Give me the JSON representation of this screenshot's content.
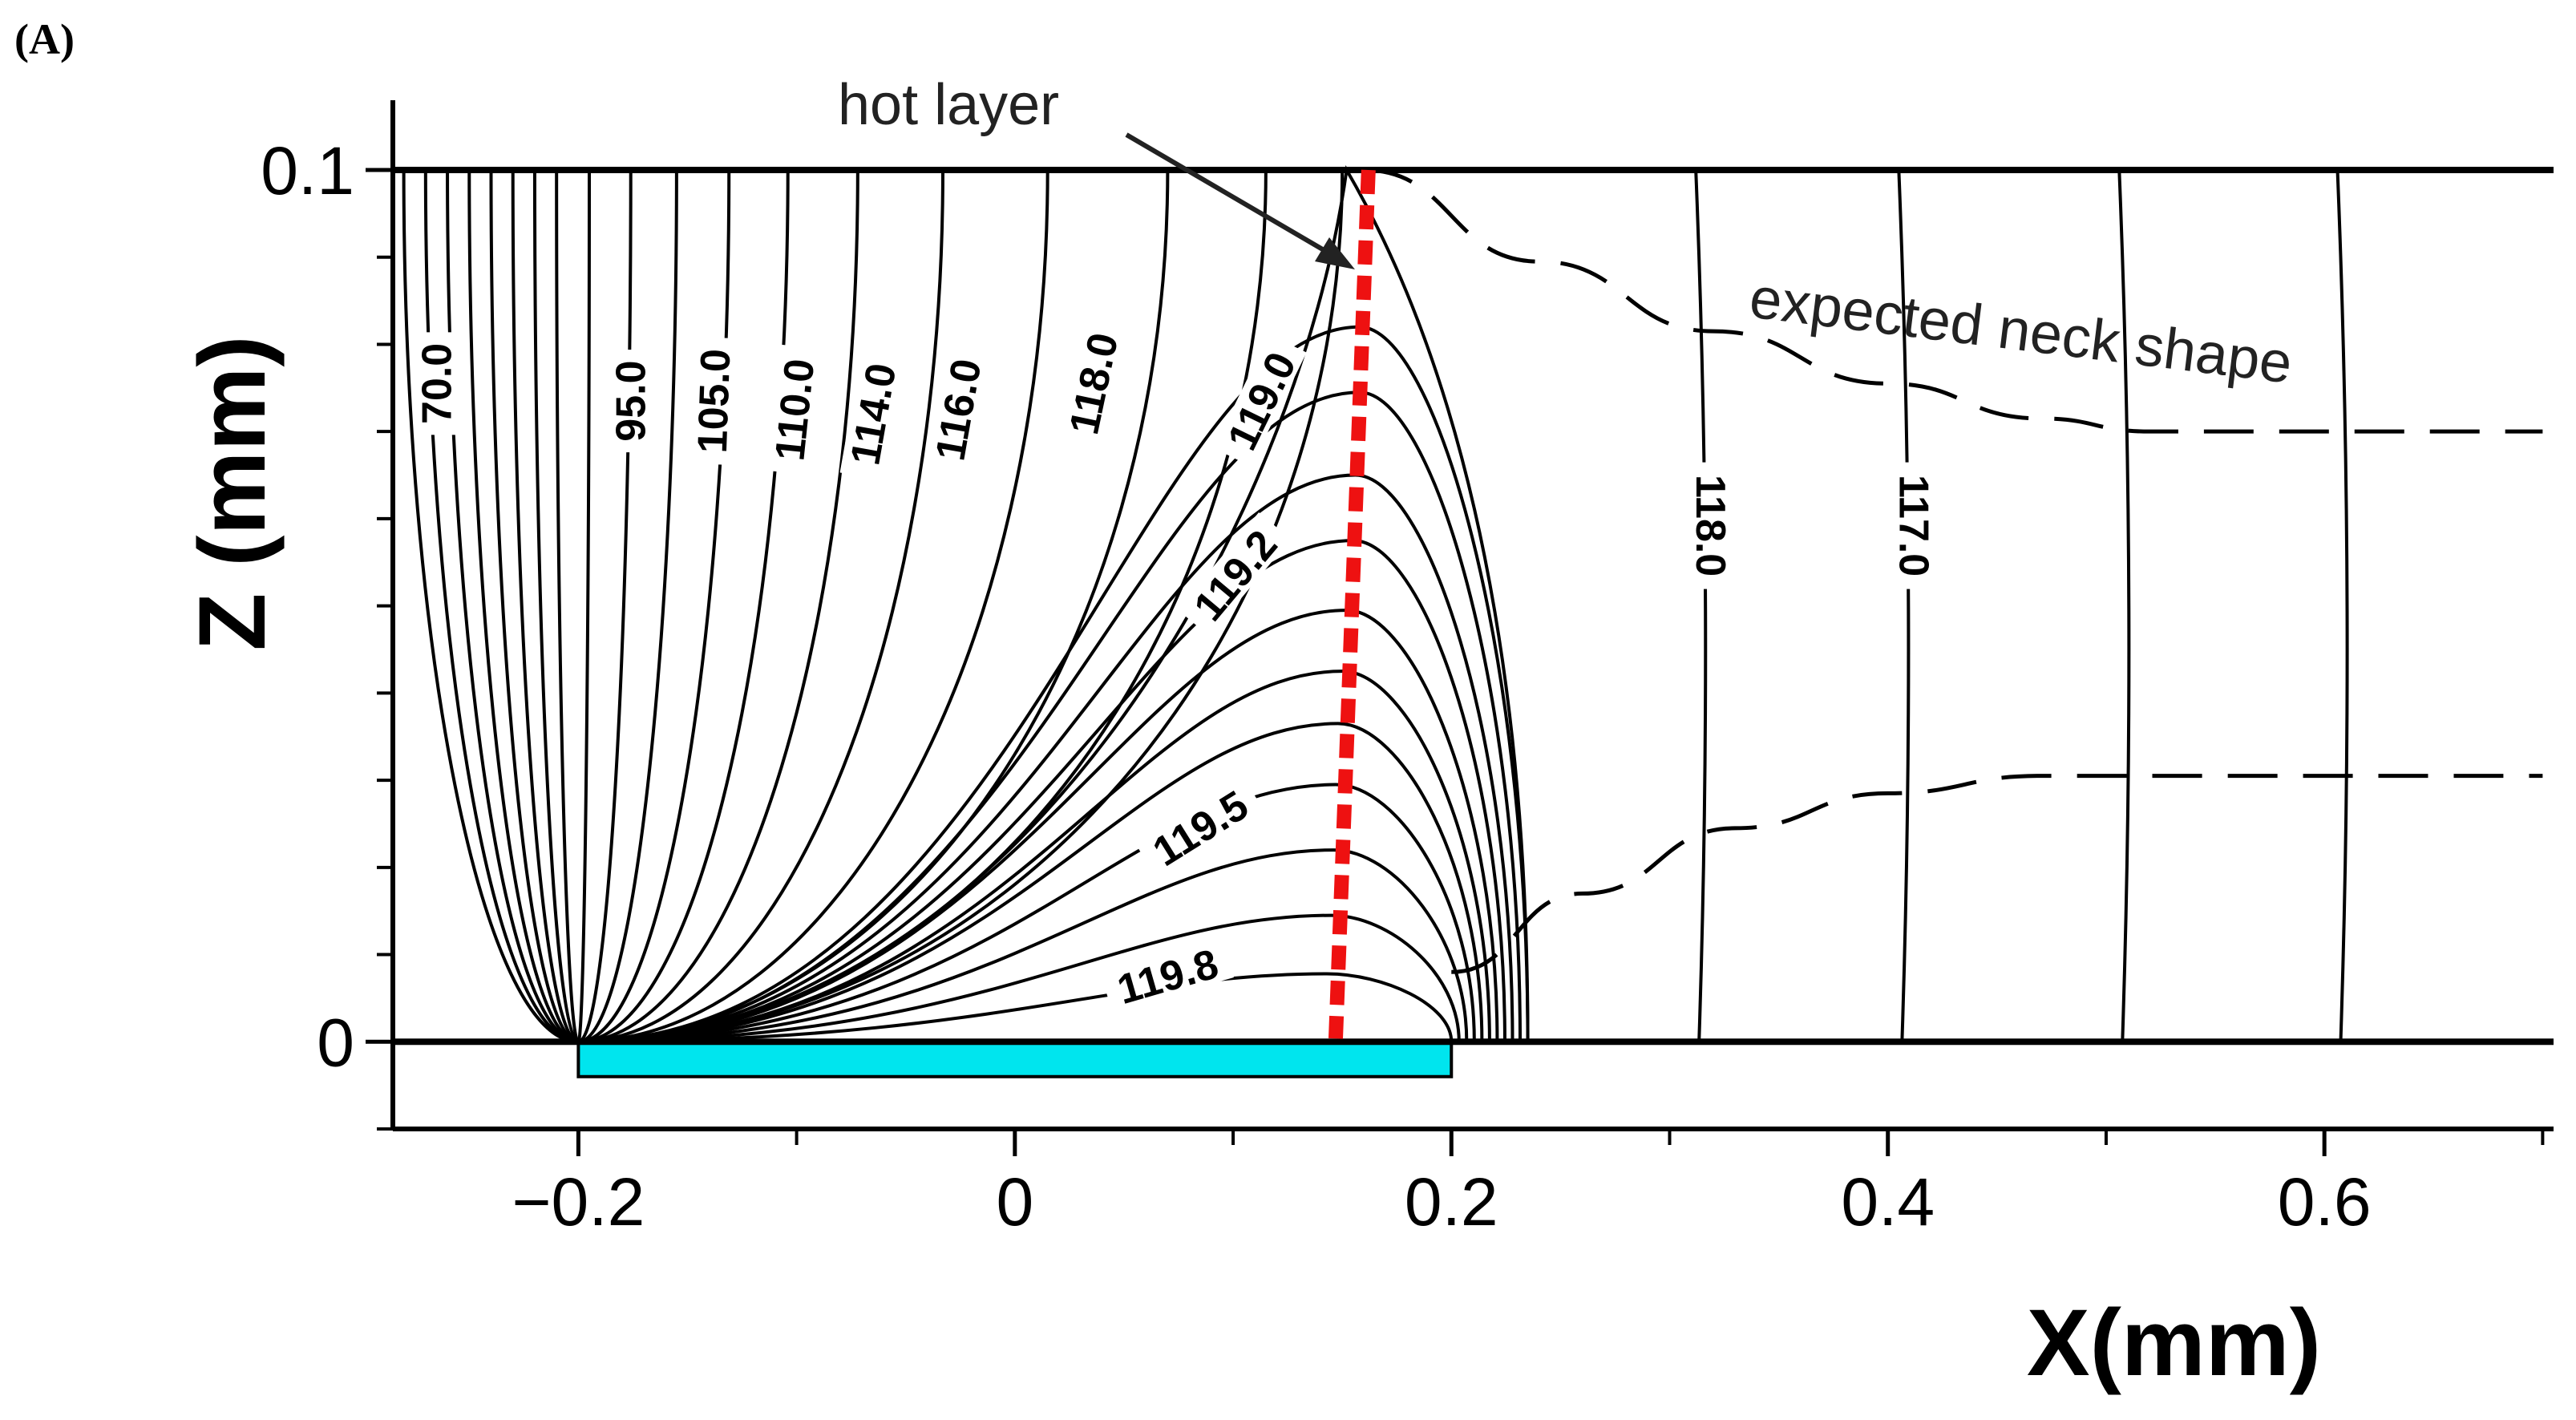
{
  "panel_label": "(A)",
  "chart_data": {
    "type": "contour",
    "title": "",
    "xlabel": "X(mm)",
    "ylabel": "Z (mm)",
    "xlim": [
      -0.285,
      0.705
    ],
    "ylim": [
      -0.01,
      0.108
    ],
    "xticks": [
      {
        "value": -0.2,
        "label": "−0.2"
      },
      {
        "value": 0,
        "label": "0"
      },
      {
        "value": 0.2,
        "label": "0.2"
      },
      {
        "value": 0.4,
        "label": "0.4"
      },
      {
        "value": 0.6,
        "label": "0.6"
      }
    ],
    "xminor": [
      -0.1,
      0.1,
      0.3,
      0.5,
      0.7
    ],
    "yticks": [
      {
        "value": 0,
        "label": "0"
      },
      {
        "value": 0.1,
        "label": "0.1"
      }
    ],
    "yminor": [
      -0.01,
      0.01,
      0.02,
      0.03,
      0.04,
      0.05,
      0.06,
      0.07,
      0.08,
      0.09
    ],
    "domain_lines_z": [
      0,
      0.1
    ],
    "heater": {
      "x_start": -0.2,
      "x_end": 0.2,
      "z_bottom": -0.004,
      "color": "#00e5ee"
    },
    "contour_labels": [
      {
        "text": "70.0",
        "x": -0.265,
        "z": 0.0755,
        "angle": -90
      },
      {
        "text": "95.0",
        "x": -0.176,
        "z": 0.0735,
        "angle": -90
      },
      {
        "text": "105.0",
        "x": -0.138,
        "z": 0.0735,
        "angle": -88
      },
      {
        "text": "110.0",
        "x": -0.101,
        "z": 0.0725,
        "angle": -84
      },
      {
        "text": "114.0",
        "x": -0.065,
        "z": 0.072,
        "angle": -80
      },
      {
        "text": "116.0",
        "x": -0.026,
        "z": 0.0725,
        "angle": -80
      },
      {
        "text": "118.0",
        "x": 0.036,
        "z": 0.0755,
        "angle": -78
      },
      {
        "text": "119.0",
        "x": 0.113,
        "z": 0.0735,
        "angle": -64
      },
      {
        "text": "119.2",
        "x": 0.101,
        "z": 0.0535,
        "angle": -50
      },
      {
        "text": "119.5",
        "x": 0.085,
        "z": 0.0245,
        "angle": -32
      },
      {
        "text": "119.8",
        "x": 0.07,
        "z": 0.0075,
        "angle": -16
      },
      {
        "text": "118.0",
        "x": 0.319,
        "z": 0.0592,
        "angle": 90
      },
      {
        "text": "117.0",
        "x": 0.412,
        "z": 0.0592,
        "angle": 90
      }
    ],
    "left_contour_tops": [
      -0.28,
      -0.27,
      -0.26,
      -0.25,
      -0.24,
      -0.23,
      -0.22,
      -0.21,
      -0.195,
      -0.176,
      -0.155,
      -0.131,
      -0.104,
      -0.072,
      -0.033,
      0.015,
      0.07,
      0.115,
      0.15
    ],
    "arch_apexes": [
      {
        "x": 0.158,
        "z": 0.082
      },
      {
        "x": 0.158,
        "z": 0.0745
      },
      {
        "x": 0.156,
        "z": 0.065
      },
      {
        "x": 0.155,
        "z": 0.0575
      },
      {
        "x": 0.152,
        "z": 0.0495
      },
      {
        "x": 0.15,
        "z": 0.0425
      },
      {
        "x": 0.148,
        "z": 0.0365
      },
      {
        "x": 0.147,
        "z": 0.0295
      },
      {
        "x": 0.146,
        "z": 0.022
      },
      {
        "x": 0.145,
        "z": 0.0145
      },
      {
        "x": 0.143,
        "z": 0.0078
      }
    ],
    "right_contour_x_top": [
      0.312,
      0.405,
      0.506,
      0.606
    ],
    "hot_layer": {
      "x_top": 0.162,
      "x_bottom": 0.147,
      "color": "#ee1111"
    },
    "dashed_curves": [
      {
        "x": [
          0.16,
          0.24,
          0.32,
          0.4,
          0.47,
          0.52,
          0.7
        ],
        "z": [
          0.1,
          0.0895,
          0.0815,
          0.0755,
          0.0715,
          0.07,
          0.07
        ]
      },
      {
        "x": [
          0.2,
          0.26,
          0.33,
          0.4,
          0.47,
          0.53,
          0.7
        ],
        "z": [
          0.008,
          0.017,
          0.0245,
          0.0285,
          0.0305,
          0.0305,
          0.0305
        ]
      }
    ],
    "annotations": [
      {
        "text": "hot layer"
      },
      {
        "text": "expected neck shape"
      }
    ]
  }
}
